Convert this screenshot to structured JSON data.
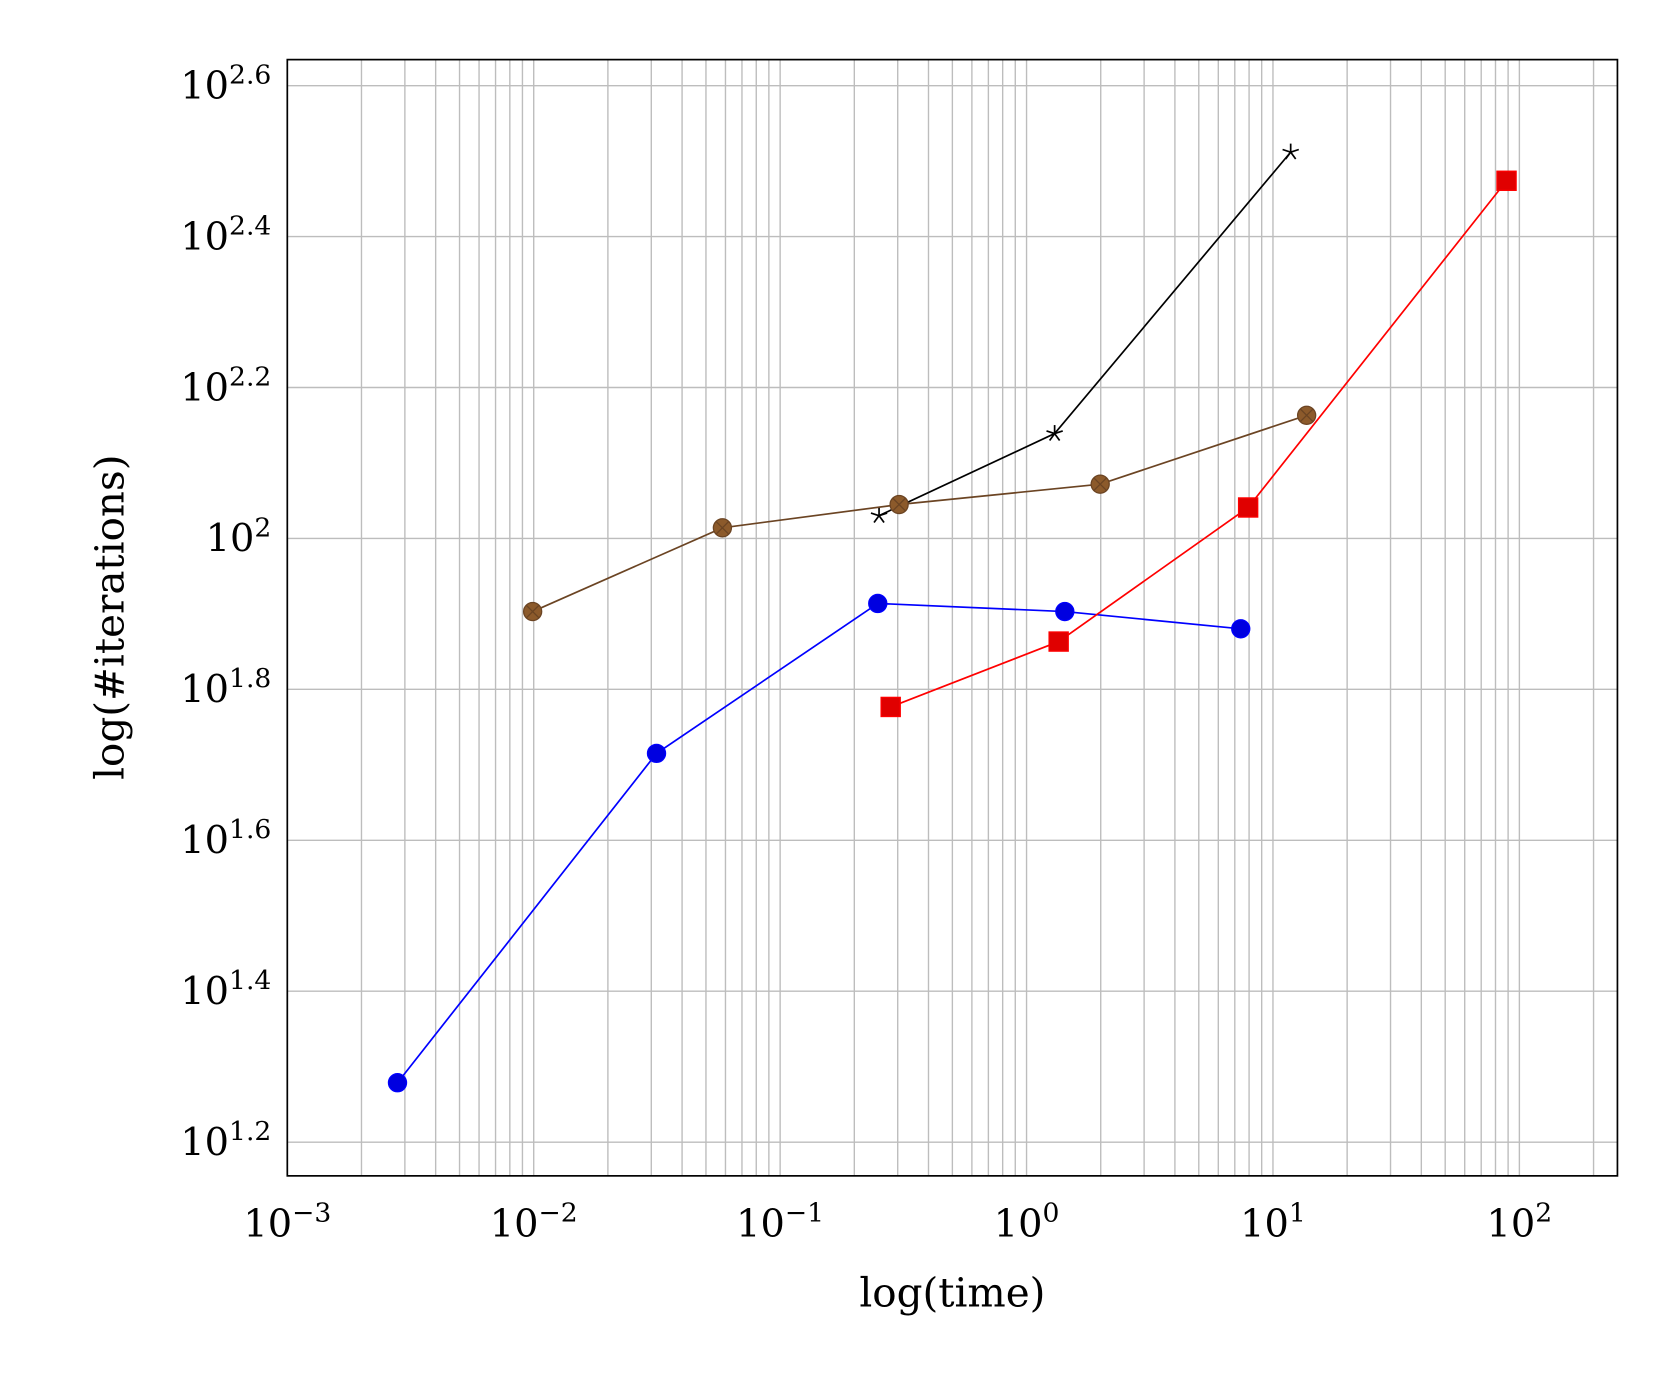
{
  "chart_data": {
    "type": "line",
    "title": "",
    "xlabel": "log(time)",
    "ylabel": "log(#iterations)",
    "xscale": "log",
    "yscale": "log",
    "xlim": [
      0.001,
      250
    ],
    "ylim": [
      14.3,
      431
    ],
    "x_ticks": [
      {
        "exp": "−3",
        "value": 0.001
      },
      {
        "exp": "−2",
        "value": 0.01
      },
      {
        "exp": "−1",
        "value": 0.1
      },
      {
        "exp": "0",
        "value": 1
      },
      {
        "exp": "1",
        "value": 10
      },
      {
        "exp": "2",
        "value": 100
      }
    ],
    "y_ticks": [
      {
        "exp": "1.2",
        "value": 1.2
      },
      {
        "exp": "1.4",
        "value": 1.4
      },
      {
        "exp": "1.6",
        "value": 1.6
      },
      {
        "exp": "1.8",
        "value": 1.8
      },
      {
        "exp": "",
        "value": 2.0
      },
      {
        "exp": "2.2",
        "value": 2.2
      },
      {
        "exp": "2.4",
        "value": 2.4
      },
      {
        "exp": "2.6",
        "value": 2.6
      }
    ],
    "tick_base": "10",
    "y_tick_base_2": "2",
    "grid": true,
    "series": [
      {
        "color": "#0000ff",
        "marker": "circle",
        "marker_fill": "#0000e0",
        "x": [
          0.0028,
          0.0315,
          0.249,
          1.43,
          7.4
        ],
        "y": [
          19.0,
          51.9,
          82.0,
          80.0,
          75.9
        ]
      },
      {
        "color": "#ff0000",
        "marker": "square",
        "marker_fill": "#e00000",
        "x": [
          0.281,
          1.35,
          7.93,
          88.7
        ],
        "y": [
          59.8,
          73.0,
          109.9,
          297.8
        ]
      },
      {
        "color": "#000000",
        "marker": "star",
        "marker_fill": "#000000",
        "x": [
          0.252,
          1.3,
          11.8
        ],
        "y": [
          107.2,
          137.7,
          325
        ]
      },
      {
        "color": "#6b4423",
        "marker": "circle-x",
        "marker_fill": "#8c5a2b",
        "x": [
          0.0099,
          0.0583,
          0.304,
          1.99,
          13.7
        ],
        "y": [
          80.0,
          103.3,
          110.9,
          118.0,
          145.6
        ]
      }
    ]
  }
}
